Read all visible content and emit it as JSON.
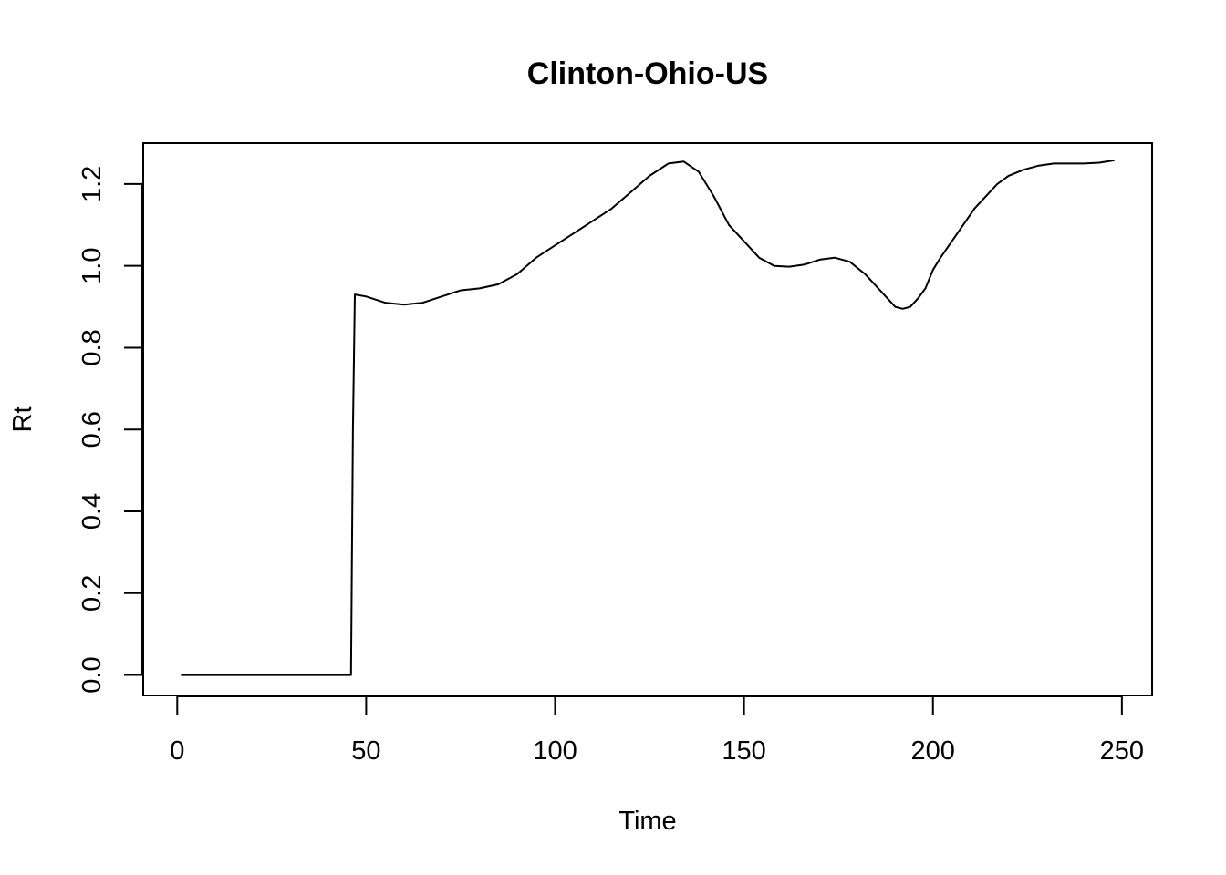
{
  "chart_data": {
    "type": "line",
    "title": "Clinton-Ohio-US",
    "xlabel": "Time",
    "ylabel": "Rt",
    "xlim": [
      -9,
      258
    ],
    "ylim": [
      -0.05,
      1.3
    ],
    "x_ticks": [
      0,
      50,
      100,
      150,
      200,
      250
    ],
    "y_ticks": [
      0.0,
      0.2,
      0.4,
      0.6,
      0.8,
      1.0,
      1.2
    ],
    "x_tick_labels": [
      "0",
      "50",
      "100",
      "150",
      "200",
      "250"
    ],
    "y_tick_labels": [
      "0.0",
      "0.2",
      "0.4",
      "0.6",
      "0.8",
      "1.0",
      "1.2"
    ],
    "grid": false,
    "line_color": "#000000",
    "series": [
      {
        "x": [
          1,
          10,
          20,
          30,
          40,
          46,
          46.5,
          47,
          50,
          55,
          60,
          65,
          70,
          75,
          80,
          85,
          90,
          95,
          100,
          105,
          110,
          115,
          120,
          125,
          130,
          134,
          138,
          142,
          146,
          150,
          154,
          158,
          162,
          166,
          170,
          174,
          178,
          182,
          186,
          190,
          192,
          194,
          196,
          198,
          200,
          202,
          205,
          208,
          211,
          214,
          217,
          220,
          224,
          228,
          232,
          236,
          240,
          244,
          248
        ],
        "y": [
          0.0,
          0.0,
          0.0,
          0.0,
          0.0,
          0.0,
          0.6,
          0.93,
          0.925,
          0.91,
          0.905,
          0.91,
          0.925,
          0.94,
          0.945,
          0.955,
          0.98,
          1.02,
          1.05,
          1.08,
          1.11,
          1.14,
          1.18,
          1.22,
          1.25,
          1.255,
          1.23,
          1.17,
          1.1,
          1.06,
          1.02,
          1.0,
          0.998,
          1.003,
          1.015,
          1.02,
          1.01,
          0.98,
          0.94,
          0.9,
          0.895,
          0.9,
          0.92,
          0.945,
          0.99,
          1.02,
          1.06,
          1.1,
          1.14,
          1.17,
          1.2,
          1.22,
          1.235,
          1.245,
          1.25,
          1.25,
          1.25,
          1.252,
          1.258
        ]
      }
    ]
  }
}
